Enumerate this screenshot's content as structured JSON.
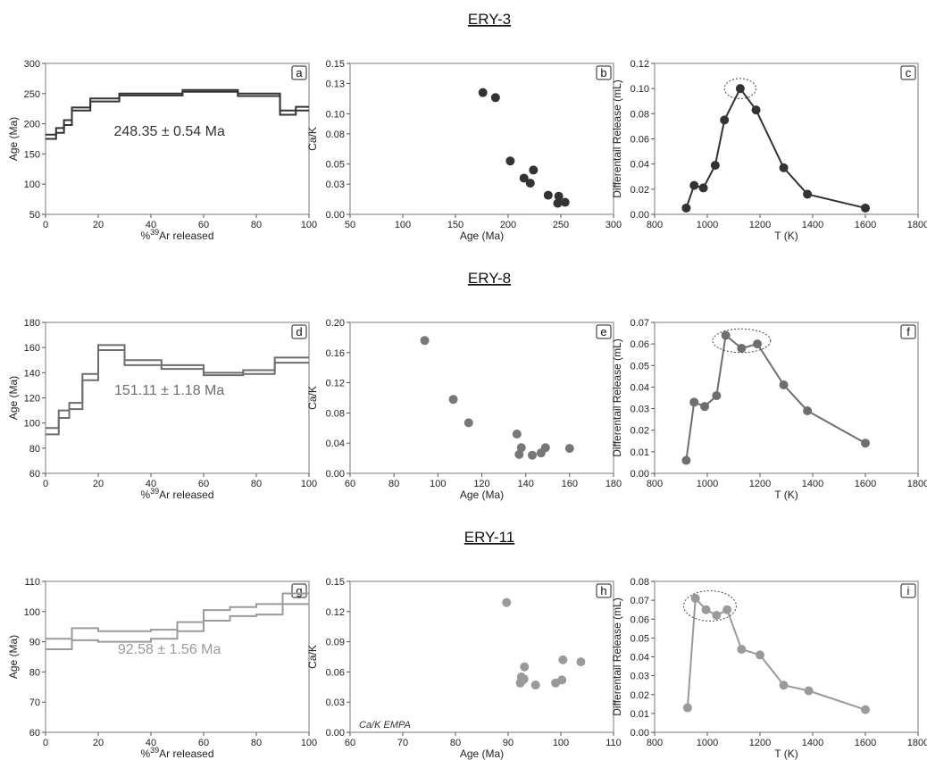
{
  "rows": [
    {
      "title": "ERY-3"
    },
    {
      "title": "ERY-8"
    },
    {
      "title": "ERY-11"
    }
  ],
  "chart_data": [
    {
      "id": "a",
      "type": "line",
      "subtype": "step",
      "xlabel": "%39Ar released",
      "ylabel": "Age (Ma)",
      "xlim": [
        0,
        100
      ],
      "ylim": [
        50,
        300
      ],
      "xticks": [
        0,
        20,
        40,
        60,
        80,
        100
      ],
      "yticks": [
        50,
        100,
        150,
        200,
        250,
        300
      ],
      "color": "#333333",
      "annotation": "248.35 ± 0.54 Ma",
      "steps": [
        {
          "x": [
            0,
            4
          ],
          "low": 175,
          "high": 182
        },
        {
          "x": [
            4,
            7
          ],
          "low": 185,
          "high": 193
        },
        {
          "x": [
            7,
            10
          ],
          "low": 198,
          "high": 206
        },
        {
          "x": [
            10,
            17
          ],
          "low": 222,
          "high": 227
        },
        {
          "x": [
            17,
            28
          ],
          "low": 237,
          "high": 242
        },
        {
          "x": [
            28,
            52
          ],
          "low": 247,
          "high": 250
        },
        {
          "x": [
            52,
            73
          ],
          "low": 253,
          "high": 256
        },
        {
          "x": [
            73,
            89
          ],
          "low": 246,
          "high": 250
        },
        {
          "x": [
            89,
            95
          ],
          "low": 215,
          "high": 222
        },
        {
          "x": [
            95,
            100
          ],
          "low": 222,
          "high": 228
        }
      ]
    },
    {
      "id": "b",
      "type": "scatter",
      "xlabel": "Age (Ma)",
      "ylabel": "Ca/K",
      "xlim": [
        50,
        300
      ],
      "ylim": [
        0.0,
        0.15
      ],
      "xticks": [
        50,
        100,
        150,
        200,
        250,
        300
      ],
      "yticks": [
        0.0,
        0.03,
        0.05,
        0.08,
        0.1,
        0.13,
        0.15
      ],
      "ytick_labels": [
        "0.00",
        "0.03",
        "0.05",
        "0.08",
        "0.10",
        "0.13",
        "0.15"
      ],
      "color": "#333333",
      "points": [
        [
          176,
          0.121
        ],
        [
          188,
          0.116
        ],
        [
          202,
          0.053
        ],
        [
          215,
          0.036
        ],
        [
          221,
          0.031
        ],
        [
          224,
          0.044
        ],
        [
          238,
          0.019
        ],
        [
          248,
          0.018
        ],
        [
          247,
          0.011
        ],
        [
          254,
          0.012
        ]
      ]
    },
    {
      "id": "c",
      "type": "line",
      "xlabel": "T (K)",
      "ylabel": "Differentail Release (mL)",
      "xlim": [
        800,
        1800
      ],
      "ylim": [
        0.0,
        0.12
      ],
      "xticks": [
        800,
        1000,
        1200,
        1400,
        1600,
        1800
      ],
      "yticks": [
        0.0,
        0.02,
        0.04,
        0.06,
        0.08,
        0.1,
        0.12
      ],
      "ytick_labels": [
        "0.00",
        "0.02",
        "0.04",
        "0.06",
        "0.08",
        "0.10",
        "0.12"
      ],
      "color": "#333333",
      "points": [
        [
          920,
          0.005
        ],
        [
          950,
          0.023
        ],
        [
          985,
          0.021
        ],
        [
          1030,
          0.039
        ],
        [
          1065,
          0.075
        ],
        [
          1125,
          0.1
        ],
        [
          1185,
          0.083
        ],
        [
          1290,
          0.037
        ],
        [
          1380,
          0.016
        ],
        [
          1600,
          0.005
        ]
      ],
      "highlight": {
        "cx": 1125,
        "cy": 0.1,
        "rx": 60,
        "ry": 0.008
      }
    },
    {
      "id": "d",
      "type": "line",
      "subtype": "step",
      "xlabel": "%39Ar released",
      "ylabel": "Age (Ma)",
      "xlim": [
        0,
        100
      ],
      "ylim": [
        60,
        180
      ],
      "xticks": [
        0,
        20,
        40,
        60,
        80,
        100
      ],
      "yticks": [
        60,
        80,
        100,
        120,
        140,
        160,
        180
      ],
      "color": "#6e6e6e",
      "annotation": "151.11 ± 1.18 Ma",
      "steps": [
        {
          "x": [
            0,
            5
          ],
          "low": 91,
          "high": 96
        },
        {
          "x": [
            5,
            9
          ],
          "low": 104,
          "high": 110
        },
        {
          "x": [
            9,
            14
          ],
          "low": 111,
          "high": 116
        },
        {
          "x": [
            14,
            20
          ],
          "low": 134,
          "high": 139
        },
        {
          "x": [
            20,
            30
          ],
          "low": 158,
          "high": 162
        },
        {
          "x": [
            30,
            44
          ],
          "low": 146,
          "high": 150
        },
        {
          "x": [
            44,
            60
          ],
          "low": 143,
          "high": 146
        },
        {
          "x": [
            60,
            75
          ],
          "low": 138,
          "high": 140
        },
        {
          "x": [
            75,
            87
          ],
          "low": 139,
          "high": 142
        },
        {
          "x": [
            87,
            100
          ],
          "low": 148,
          "high": 152
        }
      ]
    },
    {
      "id": "e",
      "type": "scatter",
      "xlabel": "Age (Ma)",
      "ylabel": "Ca/K",
      "xlim": [
        60,
        180
      ],
      "ylim": [
        0.0,
        0.2
      ],
      "xticks": [
        60,
        80,
        100,
        120,
        140,
        160,
        180
      ],
      "yticks": [
        0.0,
        0.04,
        0.08,
        0.12,
        0.16,
        0.2
      ],
      "ytick_labels": [
        "0.00",
        "0.04",
        "0.08",
        "0.12",
        "0.16",
        "0.20"
      ],
      "color": "#777777",
      "points": [
        [
          94,
          0.176
        ],
        [
          107,
          0.098
        ],
        [
          114,
          0.067
        ],
        [
          136,
          0.052
        ],
        [
          137,
          0.025
        ],
        [
          138,
          0.034
        ],
        [
          143,
          0.024
        ],
        [
          147,
          0.027
        ],
        [
          149,
          0.034
        ],
        [
          160,
          0.033
        ]
      ]
    },
    {
      "id": "f",
      "type": "line",
      "xlabel": "T (K)",
      "ylabel": "Differentail Release (mL)",
      "xlim": [
        800,
        1800
      ],
      "ylim": [
        0.0,
        0.07
      ],
      "xticks": [
        800,
        1000,
        1200,
        1400,
        1600,
        1800
      ],
      "yticks": [
        0.0,
        0.01,
        0.02,
        0.03,
        0.04,
        0.05,
        0.06,
        0.07
      ],
      "ytick_labels": [
        "0.00",
        "0.01",
        "0.02",
        "0.03",
        "0.04",
        "0.05",
        "0.06",
        "0.07"
      ],
      "color": "#6e6e6e",
      "points": [
        [
          920,
          0.006
        ],
        [
          950,
          0.033
        ],
        [
          990,
          0.031
        ],
        [
          1035,
          0.036
        ],
        [
          1070,
          0.064
        ],
        [
          1130,
          0.058
        ],
        [
          1190,
          0.06
        ],
        [
          1290,
          0.041
        ],
        [
          1380,
          0.029
        ],
        [
          1600,
          0.014
        ]
      ],
      "highlight": {
        "cx": 1130,
        "cy": 0.0615,
        "rx": 110,
        "ry": 0.0055
      }
    },
    {
      "id": "g",
      "type": "line",
      "subtype": "step",
      "xlabel": "%39Ar released",
      "ylabel": "Age (Ma)",
      "xlim": [
        0,
        100
      ],
      "ylim": [
        60,
        110
      ],
      "xticks": [
        0,
        20,
        40,
        60,
        80,
        100
      ],
      "yticks": [
        60,
        70,
        80,
        90,
        100,
        110
      ],
      "color": "#9a9a9a",
      "annotation": "92.58 ± 1.56 Ma",
      "steps": [
        {
          "x": [
            0,
            10
          ],
          "low": 87.5,
          "high": 91
        },
        {
          "x": [
            10,
            20
          ],
          "low": 90.5,
          "high": 94.5
        },
        {
          "x": [
            20,
            40
          ],
          "low": 90,
          "high": 93.5
        },
        {
          "x": [
            40,
            50
          ],
          "low": 91,
          "high": 94
        },
        {
          "x": [
            50,
            60
          ],
          "low": 93.5,
          "high": 96.5
        },
        {
          "x": [
            60,
            70
          ],
          "low": 97,
          "high": 100.5
        },
        {
          "x": [
            70,
            80
          ],
          "low": 98.5,
          "high": 101.5
        },
        {
          "x": [
            80,
            90
          ],
          "low": 99,
          "high": 102.5
        },
        {
          "x": [
            90,
            100
          ],
          "low": 102.5,
          "high": 106
        }
      ]
    },
    {
      "id": "h",
      "type": "scatter",
      "xlabel": "Age (Ma)",
      "ylabel": "Ca/K",
      "xlim": [
        60,
        110
      ],
      "ylim": [
        0.0,
        0.15
      ],
      "xticks": [
        60,
        70,
        80,
        90,
        100,
        110
      ],
      "yticks": [
        0.0,
        0.03,
        0.06,
        0.09,
        0.12,
        0.15
      ],
      "ytick_labels": [
        "0.00",
        "0.03",
        "0.06",
        "0.09",
        "0.12",
        "0.15"
      ],
      "color": "#9a9a9a",
      "annotation": "Ca/K EMPA",
      "points": [
        [
          89.7,
          0.129
        ],
        [
          92.3,
          0.049
        ],
        [
          92.5,
          0.055
        ],
        [
          92.8,
          0.052
        ],
        [
          93,
          0.053
        ],
        [
          93.1,
          0.065
        ],
        [
          95.2,
          0.047
        ],
        [
          99,
          0.049
        ],
        [
          100.2,
          0.052
        ],
        [
          100.4,
          0.072
        ],
        [
          103.8,
          0.07
        ]
      ]
    },
    {
      "id": "i",
      "type": "line",
      "xlabel": "T (K)",
      "ylabel": "Differentail Release (mL)",
      "xlim": [
        800,
        1800
      ],
      "ylim": [
        0.0,
        0.08
      ],
      "xticks": [
        800,
        1000,
        1200,
        1400,
        1600,
        1800
      ],
      "yticks": [
        0.0,
        0.01,
        0.02,
        0.03,
        0.04,
        0.05,
        0.06,
        0.07,
        0.08
      ],
      "ytick_labels": [
        "0.00",
        "0.01",
        "0.02",
        "0.03",
        "0.04",
        "0.05",
        "0.06",
        "0.07",
        "0.08"
      ],
      "color": "#9a9a9a",
      "points": [
        [
          925,
          0.013
        ],
        [
          955,
          0.071
        ],
        [
          995,
          0.065
        ],
        [
          1035,
          0.062
        ],
        [
          1075,
          0.065
        ],
        [
          1130,
          0.044
        ],
        [
          1200,
          0.041
        ],
        [
          1290,
          0.025
        ],
        [
          1385,
          0.022
        ],
        [
          1600,
          0.012
        ]
      ],
      "highlight": {
        "cx": 1010,
        "cy": 0.067,
        "rx": 100,
        "ry": 0.008
      }
    }
  ]
}
